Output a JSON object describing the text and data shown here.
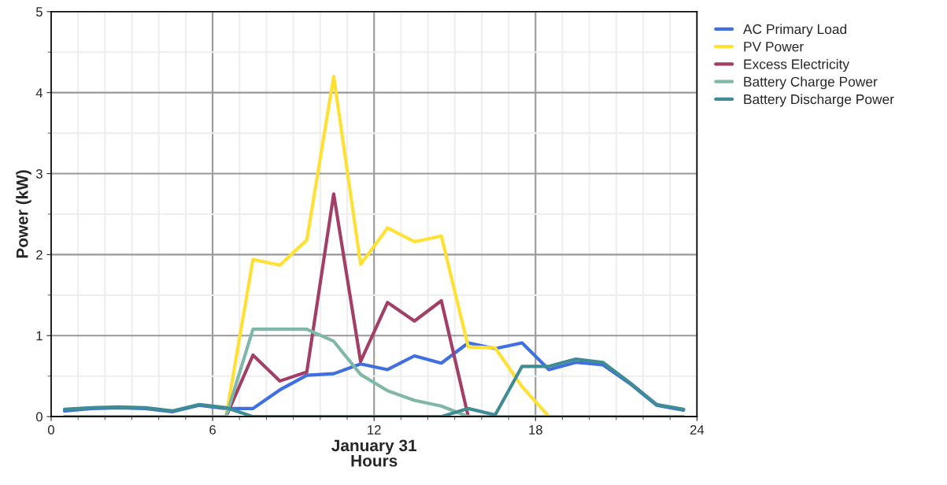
{
  "chart_data": {
    "type": "line",
    "xlabel": "January 31\nHours",
    "ylabel": "Power (kW)",
    "x": [
      0.5,
      1.5,
      2.5,
      3.5,
      4.5,
      5.5,
      6.5,
      7.5,
      8.5,
      9.5,
      10.5,
      11.5,
      12.5,
      13.5,
      14.5,
      15.5,
      16.5,
      17.5,
      18.5,
      19.5,
      20.5,
      21.5,
      22.5,
      23.5
    ],
    "series": [
      {
        "name": "AC Primary Load",
        "color": "#3f6fe0",
        "values": [
          0.07,
          0.1,
          0.11,
          0.1,
          0.06,
          0.14,
          0.1,
          0.1,
          0.33,
          0.51,
          0.53,
          0.65,
          0.58,
          0.75,
          0.66,
          0.91,
          0.84,
          0.91,
          0.58,
          0.67,
          0.64,
          0.41,
          0.14,
          0.08
        ]
      },
      {
        "name": "PV Power",
        "color": "#ffe033",
        "values": [
          null,
          null,
          null,
          null,
          null,
          null,
          0,
          1.94,
          1.87,
          2.18,
          4.2,
          1.88,
          2.33,
          2.16,
          2.23,
          0.86,
          0.85,
          0.37,
          0,
          null,
          null,
          null,
          null,
          null
        ]
      },
      {
        "name": "Excess Electricity",
        "color": "#a33f66",
        "values": [
          null,
          null,
          null,
          null,
          null,
          null,
          0,
          0.76,
          0.44,
          0.55,
          2.75,
          0.68,
          1.41,
          1.18,
          1.43,
          0,
          null,
          null,
          null,
          null,
          null,
          null,
          null,
          null
        ]
      },
      {
        "name": "Battery Charge Power",
        "color": "#7fb8a8",
        "values": [
          0,
          0,
          0,
          0,
          0,
          0,
          0,
          1.08,
          1.08,
          1.08,
          0.93,
          0.52,
          0.32,
          0.2,
          0.13,
          0,
          0,
          0,
          0,
          0,
          0,
          0,
          0,
          0
        ]
      },
      {
        "name": "Battery Discharge Power",
        "color": "#3f8c94",
        "values": [
          0.09,
          0.11,
          0.12,
          0.11,
          0.07,
          0.15,
          0.11,
          0,
          0,
          0,
          0,
          0,
          0,
          0,
          0,
          0.1,
          0.02,
          0.62,
          0.62,
          0.71,
          0.67,
          0.42,
          0.15,
          0.09
        ]
      }
    ],
    "xlim": [
      0,
      24
    ],
    "xticks": [
      0,
      6,
      12,
      18,
      24
    ],
    "ylim": [
      0,
      5
    ],
    "yticks": [
      0,
      1,
      2,
      3,
      4,
      5
    ],
    "grid": true,
    "legend": "top right",
    "line_style": "solid",
    "marker": "none"
  }
}
